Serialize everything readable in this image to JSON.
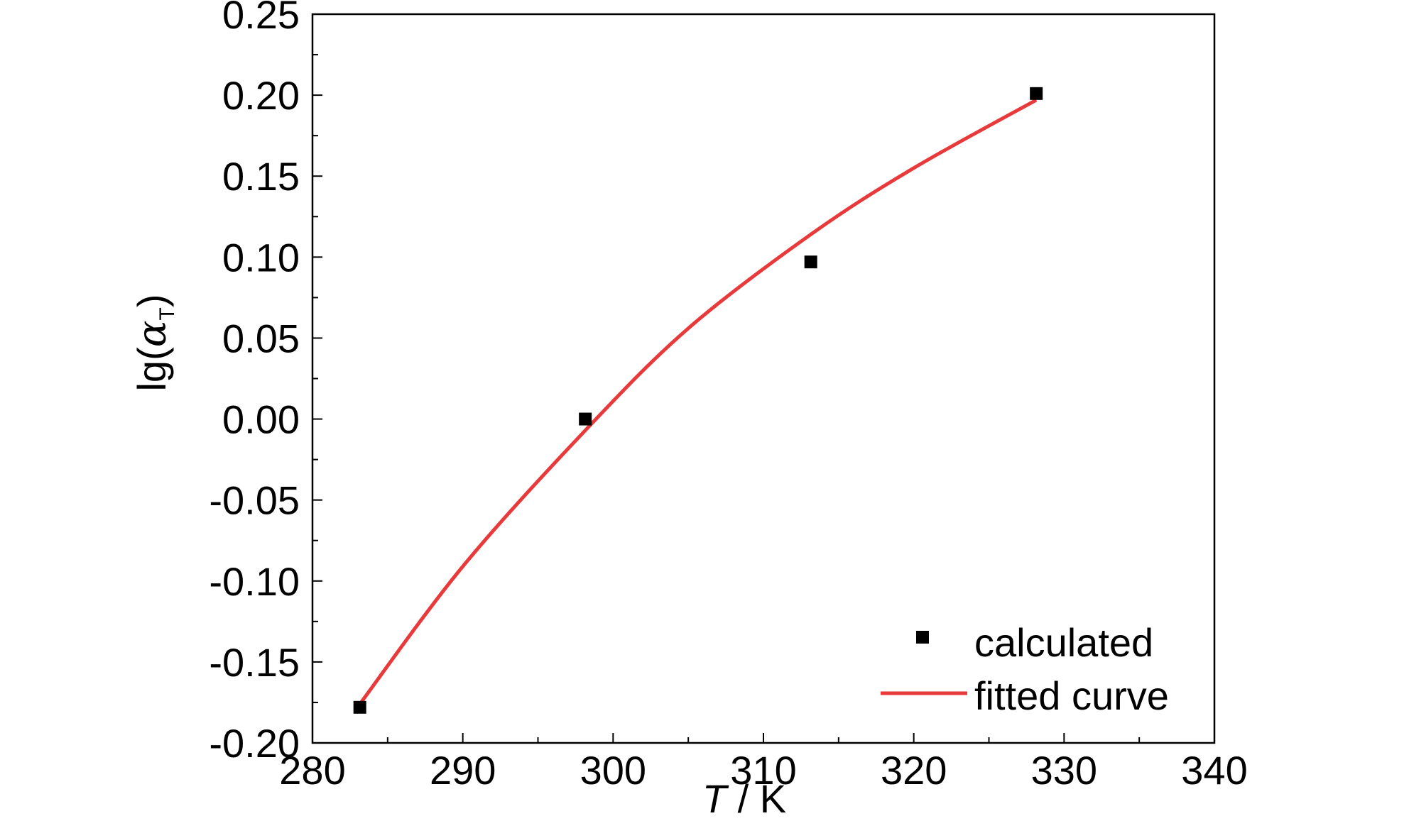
{
  "chart_data": {
    "type": "scatter",
    "xlabel_italic": "T",
    "xlabel_rest": " / K",
    "ylabel_main": "lg(",
    "ylabel_symbol": "α",
    "ylabel_sub": "T",
    "ylabel_close": ")",
    "xlim": [
      280,
      340
    ],
    "ylim": [
      -0.2,
      0.25
    ],
    "x_ticks": [
      280,
      290,
      300,
      310,
      320,
      330,
      340
    ],
    "x_tick_labels": [
      "280",
      "290",
      "300",
      "310",
      "320",
      "330",
      "340"
    ],
    "y_ticks": [
      -0.2,
      -0.15,
      -0.1,
      -0.05,
      0.0,
      0.05,
      0.1,
      0.15,
      0.2,
      0.25
    ],
    "y_tick_labels": [
      "-0.20",
      "-0.15",
      "-0.10",
      "-0.05",
      "0.00",
      "0.05",
      "0.10",
      "0.15",
      "0.20",
      "0.25"
    ],
    "grid": false,
    "legend_position": "bottom-right",
    "series": [
      {
        "name": "calculated",
        "kind": "scatter",
        "marker": "square",
        "color": "#000000",
        "x": [
          283.15,
          298.15,
          313.15,
          328.15
        ],
        "y": [
          -0.178,
          0.0,
          0.097,
          0.201
        ]
      },
      {
        "name": "fitted curve",
        "kind": "line",
        "color": "#e8393b",
        "x": [
          283.15,
          290,
          298.15,
          305,
          313.15,
          320,
          328.15
        ],
        "y": [
          -0.176,
          -0.091,
          -0.007,
          0.056,
          0.114,
          0.155,
          0.197
        ]
      }
    ]
  }
}
